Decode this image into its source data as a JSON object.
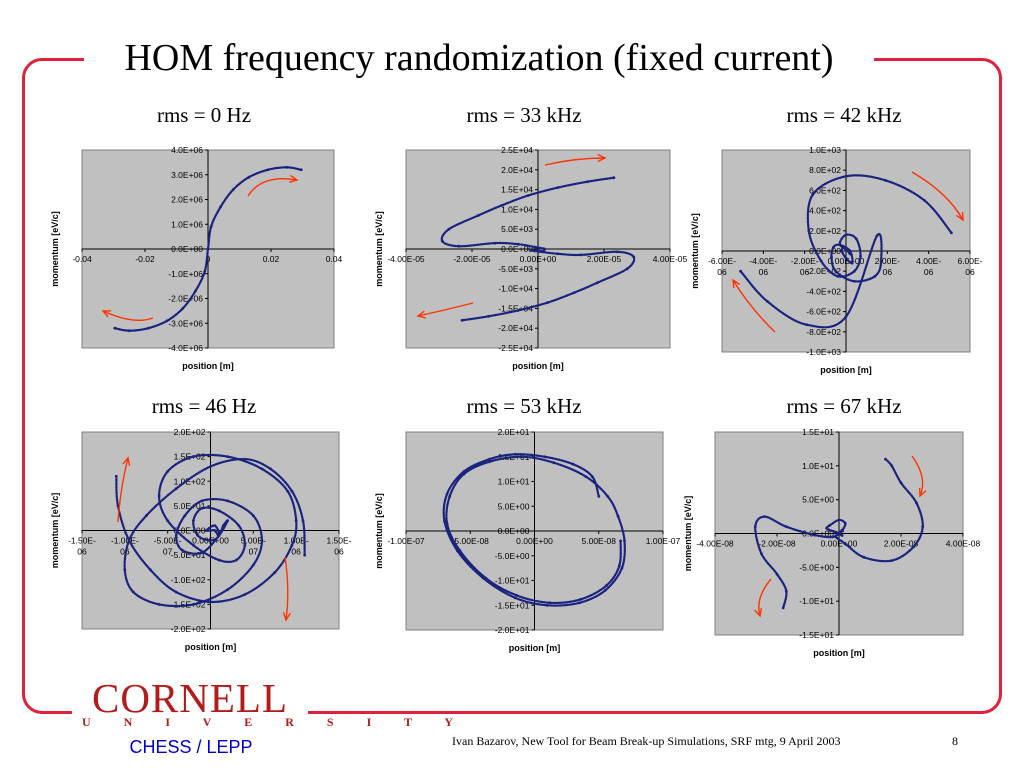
{
  "slide": {
    "title": "HOM frequency randomization (fixed current)",
    "footer": "Ivan Bazarov, New Tool for Beam Break-up Simulations, SRF mtg, 9 April 2003",
    "page_number": "8",
    "logo": {
      "name": "CORNELL",
      "subname": "U N I V E R S I T Y",
      "dept": "CHESS / LEPP"
    },
    "colors": {
      "frame": "#e0203c",
      "plot_bg": "#c0c0c0",
      "series": "#1a237e",
      "arrows": "#ff3300",
      "logo": "#b31b1b",
      "dept": "#0000cc"
    }
  },
  "chart_data": [
    {
      "type": "scatter",
      "title": "rms = 0 Hz",
      "xlabel": "position [m]",
      "ylabel": "momentum [eV/c]",
      "xlim": [
        -0.04,
        0.04
      ],
      "ylim": [
        -4000000,
        4000000
      ],
      "xticks": [
        "-0.04",
        "-0.02",
        "0",
        "0.02",
        "0.04"
      ],
      "yticks": [
        "4.0E+06",
        "3.0E+06",
        "2.0E+06",
        "1.0E+06",
        "0.0E+00",
        "-1.0E+06",
        "-2.0E+06",
        "-3.0E+06",
        "-4.0E+06"
      ],
      "series": [
        {
          "x": [
            0.0296,
            0.025,
            0.019,
            0.013,
            0.008,
            0.004,
            0.001,
            0,
            -0.001,
            -0.004,
            -0.008,
            -0.013,
            -0.019,
            -0.025,
            -0.0296
          ],
          "y": [
            3200000,
            3300000,
            3200000,
            2900000,
            2400000,
            1700000,
            900000,
            0,
            -900000,
            -1700000,
            -2400000,
            -2900000,
            -3200000,
            -3300000,
            -3200000
          ]
        }
      ]
    },
    {
      "type": "scatter",
      "title": "rms = 33 kHz",
      "xlabel": "position [m]",
      "ylabel": "momentum [eV/c]",
      "xlim": [
        -4e-05,
        4e-05
      ],
      "ylim": [
        -25000,
        25000
      ],
      "xticks": [
        "-4.00E-05",
        "-2.00E-05",
        "0.00E+00",
        "2.00E-05",
        "4.00E-05"
      ],
      "yticks": [
        "2.5E+04",
        "2.0E+04",
        "1.5E+04",
        "1.0E+04",
        "5.0E+03",
        "0.0E+00",
        "-5.0E+03",
        "-1.0E+04",
        "-1.5E+04",
        "-2.0E+04",
        "-2.5E+04"
      ],
      "series": [
        {
          "x": [
            2.3e-05,
            1.5e-05,
            6e-06,
            -3e-06,
            -1.1e-05,
            -1.8e-05,
            -2.7e-05,
            -2.9e-05,
            -2.4e-05,
            -1.3e-05,
            -6e-06,
            -1e-06,
            2e-06,
            1e-06,
            -2e-06,
            -1e-06,
            6e-06,
            1.3e-05,
            2.4e-05,
            2.9e-05,
            2.7e-05,
            1.8e-05,
            1.1e-05,
            3e-06,
            -6e-06,
            -1.5e-05,
            -2.3e-05
          ],
          "y": [
            18000,
            17000,
            15500,
            13500,
            11000,
            8500,
            5000,
            2000,
            700,
            1500,
            1200,
            500,
            0,
            -600,
            -200,
            -500,
            -1200,
            -1500,
            -700,
            -2000,
            -5000,
            -8500,
            -11000,
            -13500,
            -15500,
            -17000,
            -18000
          ]
        }
      ]
    },
    {
      "type": "scatter",
      "title": "rms = 42 kHz",
      "xlabel": "position [m]",
      "ylabel": "momentum [eV/c]",
      "xlim": [
        -6e-06,
        6e-06
      ],
      "ylim": [
        -1000,
        1000
      ],
      "xticks": [
        "-6.00E-06",
        "-4.00E-06",
        "-2.00E-06",
        "0.00E+00",
        "2.00E-06",
        "4.00E-06",
        "6.00E-06"
      ],
      "yticks": [
        "1.0E+03",
        "8.0E+02",
        "6.0E+02",
        "4.0E+02",
        "2.0E+02",
        "0.0E+00",
        "-2.0E+02",
        "-4.0E+02",
        "-6.0E+02",
        "-8.0E+02",
        "-1.0E+03"
      ],
      "series": [
        {
          "x": [
            5.1e-06,
            3.8e-06,
            1.9e-06,
            0,
            -1.6e-06,
            -1.8e-06,
            -1.2e-06,
            -4e-07,
            4e-07,
            7e-07,
            5e-07,
            0,
            -3e-07,
            1e-07,
            2e-07,
            -1e-07,
            -2e-07,
            0,
            3e-07,
            2e-07,
            -3e-07,
            -6e-07,
            -7e-07,
            -5e-07,
            4e-07,
            1.4e-06,
            1.7e-06,
            1.5e-06,
            0,
            -1.9e-06,
            -3.8e-06,
            -5.1e-06
          ],
          "y": [
            180,
            500,
            700,
            740,
            560,
            200,
            -100,
            -250,
            -200,
            -50,
            120,
            160,
            70,
            0,
            -30,
            40,
            0,
            -70,
            -120,
            0,
            60,
            40,
            -60,
            -200,
            -300,
            -250,
            -100,
            150,
            -650,
            -730,
            -500,
            -200
          ]
        }
      ]
    },
    {
      "type": "scatter",
      "title": "rms = 46 Hz",
      "xlabel": "position [m]",
      "ylabel": "momentum [eV/c]",
      "xlim": [
        -1.5e-06,
        1.5e-06
      ],
      "ylim": [
        -200,
        200
      ],
      "xticks": [
        "-1.50E-06",
        "-1.00E-06",
        "-5.00E-07",
        "0.00E+00",
        "5.00E-07",
        "1.00E-06",
        "1.50E-06"
      ],
      "yticks": [
        "2.0E+02",
        "1.5E+02",
        "1.0E+02",
        "5.0E+01",
        "0.0E+00",
        "-5.0E+01",
        "-1.0E+02",
        "-1.5E+02",
        "-2.0E+02"
      ],
      "series": [
        {
          "x": [
            -1.1e-06,
            -1.08e-06,
            -9.5e-07,
            -7e-07,
            -4e-07,
            0,
            4e-07,
            7.5e-07,
            9.5e-07,
            1e-06,
            9e-07,
            6e-07,
            2e-07,
            -2e-07,
            -5e-07,
            -6e-07,
            -5e-07,
            -2e-07,
            1e-07,
            3e-07,
            4e-07,
            3.3e-07,
            1e-07,
            -1e-07,
            -2e-07,
            -1.5e-07,
            0,
            1e-07,
            5e-08,
            -5e-08,
            0,
            5e-08,
            1e-07,
            1.5e-07,
            2e-07,
            1e-07,
            -1e-07,
            -3.3e-07,
            -4e-07,
            -3e-07,
            -1e-07,
            2e-07,
            5e-07,
            6e-07,
            5e-07,
            2e-07,
            -2e-07,
            -6e-07,
            -9e-07,
            -1e-06,
            -9.5e-07,
            -7.5e-07,
            -4e-07,
            0,
            4e-07,
            7e-07,
            9.5e-07,
            1.08e-06,
            1.1e-06
          ],
          "y": [
            110,
            50,
            -20,
            -80,
            -125,
            -145,
            -130,
            -85,
            -30,
            20,
            80,
            125,
            150,
            150,
            120,
            70,
            20,
            -30,
            -60,
            -60,
            -30,
            10,
            40,
            45,
            20,
            -10,
            -20,
            -10,
            10,
            0,
            0,
            0,
            -10,
            10,
            20,
            -10,
            -45,
            -40,
            -10,
            30,
            60,
            60,
            30,
            -20,
            -70,
            -120,
            -150,
            -150,
            -125,
            -80,
            -20,
            30,
            85,
            130,
            145,
            125,
            80,
            20,
            -50
          ]
        }
      ]
    },
    {
      "type": "scatter",
      "title": "rms = 53 kHz",
      "xlabel": "position [m]",
      "ylabel": "momentum [eV/c]",
      "xlim": [
        -1e-07,
        1e-07
      ],
      "ylim": [
        -20,
        20
      ],
      "xticks": [
        "-1.00E-07",
        "-5.00E-08",
        "0.00E+00",
        "5.00E-08",
        "1.00E-07"
      ],
      "yticks": [
        "2.0E+01",
        "1.5E+01",
        "1.0E+01",
        "5.0E+00",
        "0.0E+00",
        "-5.0E+00",
        "-1.0E+01",
        "-1.5E+01",
        "-2.0E+01"
      ],
      "series": [
        {
          "x": [
            5e-08,
            4.5e-08,
            3e-08,
            8e-09,
            -1.5e-08,
            -3.5e-08,
            -5.5e-08,
            -6.8e-08,
            -7e-08,
            -6e-08,
            -4e-08,
            -1.5e-08,
            1e-08,
            3.5e-08,
            5.5e-08,
            6.8e-08,
            7e-08,
            6.5e-08,
            5.7e-08,
            4e-08,
            1.5e-08,
            -1e-08,
            -3.5e-08,
            -5.5e-08,
            -6.6e-08,
            -6.8e-08,
            -5.8e-08,
            -3.8e-08,
            -1.4e-08,
            1.2e-08,
            3.6e-08,
            5.6e-08,
            6.6e-08,
            6.7e-08
          ],
          "y": [
            7,
            11,
            13.5,
            15,
            15.5,
            14.5,
            12,
            7.5,
            2,
            -4,
            -9.5,
            -13.5,
            -15,
            -14.5,
            -12,
            -7.5,
            -2,
            3,
            7,
            11,
            13.8,
            15,
            14,
            11.5,
            7,
            1.5,
            -4,
            -9.5,
            -13,
            -14.5,
            -13.8,
            -11,
            -7,
            -2
          ]
        }
      ]
    },
    {
      "type": "scatter",
      "title": "rms = 67 kHz",
      "xlabel": "position [m]",
      "ylabel": "momentum [eV/c]",
      "xlim": [
        -4e-08,
        4e-08
      ],
      "ylim": [
        -15,
        15
      ],
      "xticks": [
        "-4.00E-08",
        "-2.00E-08",
        "0.00E+00",
        "2.00E-08",
        "4.00E-08"
      ],
      "yticks": [
        "1.5E+01",
        "1.0E+01",
        "5.0E+00",
        "0.0E+00",
        "-5.0E+00",
        "-1.0E+01",
        "-1.5E+01"
      ],
      "series": [
        {
          "x": [
            1.5e-08,
            1.7e-08,
            2e-08,
            2.5e-08,
            2.7e-08,
            2.4e-08,
            1.7e-08,
            8e-09,
            2e-09,
            -1e-09,
            0,
            1.2e-09,
            5e-10,
            -5e-10,
            0,
            1e-09,
            -1e-09,
            -3e-09,
            -4e-09,
            -3e-09,
            0,
            2e-09,
            1e-09,
            -2e-09,
            -8e-09,
            -1.7e-08,
            -2.4e-08,
            -2.7e-08,
            -2.5e-08,
            -2e-08,
            -1.7e-08,
            -1.8e-08
          ],
          "y": [
            11,
            10,
            7.5,
            4.5,
            1,
            -2,
            -4,
            -3.5,
            -1.5,
            -0.5,
            0,
            0.4,
            0.2,
            -0.1,
            0,
            -0.3,
            0.2,
            0.5,
            0.8,
            1.2,
            2,
            1.5,
            0.5,
            -0.5,
            -0.2,
            1,
            2.5,
            1,
            -3,
            -6,
            -8.5,
            -11
          ]
        }
      ]
    }
  ]
}
